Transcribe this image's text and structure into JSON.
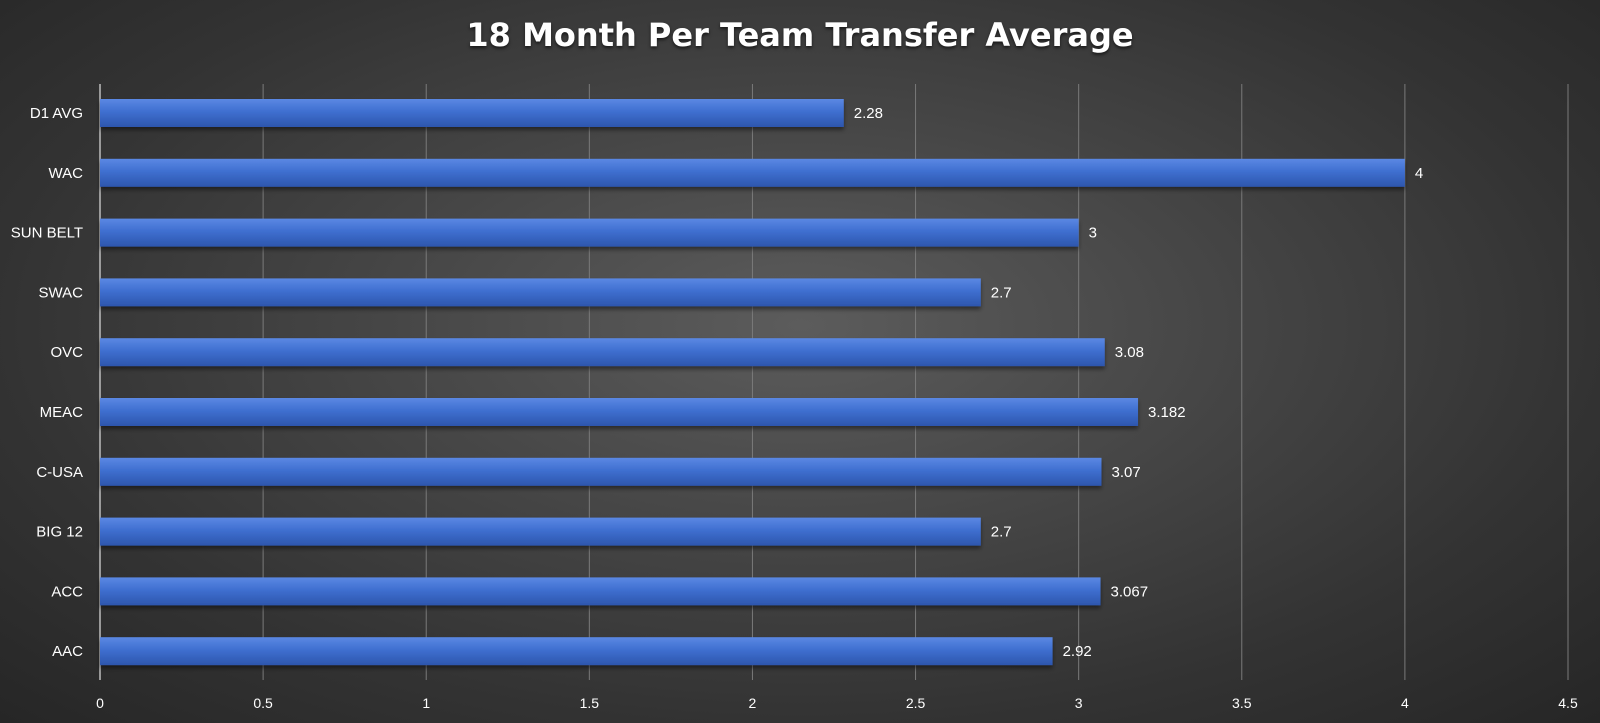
{
  "chart_data": {
    "type": "bar",
    "orientation": "horizontal",
    "title": "18 Month Per Team Transfer Average",
    "xlabel": "",
    "ylabel": "",
    "categories": [
      "D1 AVG",
      "WAC",
      "SUN BELT",
      "SWAC",
      "OVC",
      "MEAC",
      "C-USA",
      "BIG 12",
      "ACC",
      "AAC"
    ],
    "values": [
      2.28,
      4,
      3,
      2.7,
      3.08,
      3.182,
      3.07,
      2.7,
      3.067,
      2.92
    ],
    "data_labels": [
      "2.28",
      "4",
      "3",
      "2.7",
      "3.08",
      "3.182",
      "3.07",
      "2.7",
      "3.067",
      "2.92"
    ],
    "xlim": [
      0,
      4.5
    ],
    "xticks": [
      "0",
      "0.5",
      "1",
      "1.5",
      "2",
      "2.5",
      "3",
      "3.5",
      "4",
      "4.5"
    ],
    "grid": "vertical",
    "legend": "none",
    "bar_color": "#3f6fd0"
  }
}
